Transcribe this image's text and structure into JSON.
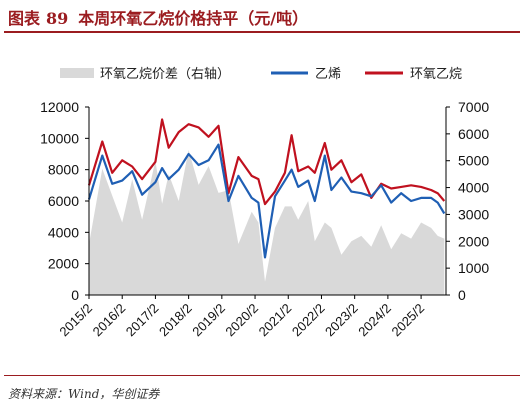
{
  "header": {
    "figure_label": "图表",
    "figure_number": "89",
    "title": "本周环氧乙烷价格持平（元/吨）"
  },
  "source": "资料来源：Wind，华创证券",
  "colors": {
    "title": "#9b1c20",
    "spread_area": "#d9d9d9",
    "ethylene": "#1f5fb4",
    "eo": "#c0111f"
  },
  "chart_data": {
    "type": "line",
    "title": "",
    "legend": [
      "环氧乙烷价差（右轴）",
      "乙烯",
      "环氧乙烷"
    ],
    "legend_position": "top",
    "xlabel": "",
    "ylabel": "",
    "x_ticks": [
      "2015/2",
      "2016/2",
      "2017/2",
      "2018/2",
      "2019/2",
      "2020/2",
      "2021/2",
      "2022/2",
      "2023/2",
      "2024/2",
      "2025/2"
    ],
    "y_left": {
      "ticks": [
        "0",
        "2000",
        "4000",
        "6000",
        "8000",
        "10000",
        "12000"
      ],
      "ylim": [
        0,
        12000
      ]
    },
    "y_right": {
      "ticks": [
        "0",
        "1000",
        "2000",
        "3000",
        "4000",
        "5000",
        "6000",
        "7000"
      ],
      "ylim": [
        0,
        7000
      ]
    },
    "grid": false,
    "x": [
      2015.0,
      2015.4,
      2015.7,
      2016.0,
      2016.3,
      2016.6,
      2017.0,
      2017.2,
      2017.4,
      2017.7,
      2018.0,
      2018.3,
      2018.6,
      2018.9,
      2019.2,
      2019.5,
      2019.9,
      2020.1,
      2020.3,
      2020.6,
      2020.9,
      2021.1,
      2021.3,
      2021.6,
      2021.8,
      2022.1,
      2022.3,
      2022.6,
      2022.9,
      2023.2,
      2023.5,
      2023.8,
      2024.1,
      2024.4,
      2024.7,
      2025.0,
      2025.3,
      2025.5,
      2025.7
    ],
    "series": [
      {
        "name": "环氧乙烷价差（右轴）",
        "axis": "right",
        "style": "area",
        "values": [
          1900,
          4700,
          3700,
          2700,
          4300,
          2800,
          5000,
          3400,
          4500,
          3500,
          5400,
          4100,
          4800,
          3800,
          3900,
          1900,
          3100,
          2700,
          500,
          2500,
          3300,
          3300,
          2800,
          3500,
          2000,
          2700,
          2500,
          1500,
          2000,
          2200,
          1800,
          2600,
          1700,
          2300,
          2100,
          2700,
          2500,
          2200,
          2100
        ]
      },
      {
        "name": "乙烯",
        "axis": "left",
        "style": "line",
        "values": [
          6100,
          8900,
          7100,
          7300,
          7900,
          6400,
          7200,
          8100,
          7400,
          8000,
          9000,
          8300,
          8600,
          9600,
          6000,
          7600,
          6200,
          5900,
          2400,
          6300,
          7300,
          8000,
          6900,
          7300,
          6000,
          8900,
          6700,
          7500,
          6600,
          6500,
          6300,
          7000,
          5900,
          6500,
          6000,
          6200,
          6200,
          5900,
          5200
        ]
      },
      {
        "name": "环氧乙烷",
        "axis": "left",
        "style": "line",
        "values": [
          7000,
          9800,
          7800,
          8600,
          8200,
          7400,
          8500,
          11200,
          9400,
          10400,
          10900,
          10700,
          10100,
          10800,
          6500,
          8800,
          7600,
          7400,
          5800,
          6600,
          7800,
          10200,
          7900,
          8200,
          7800,
          9700,
          8000,
          8600,
          7200,
          7700,
          6200,
          7100,
          6800,
          6900,
          7000,
          6900,
          6700,
          6500,
          6000
        ]
      }
    ]
  }
}
